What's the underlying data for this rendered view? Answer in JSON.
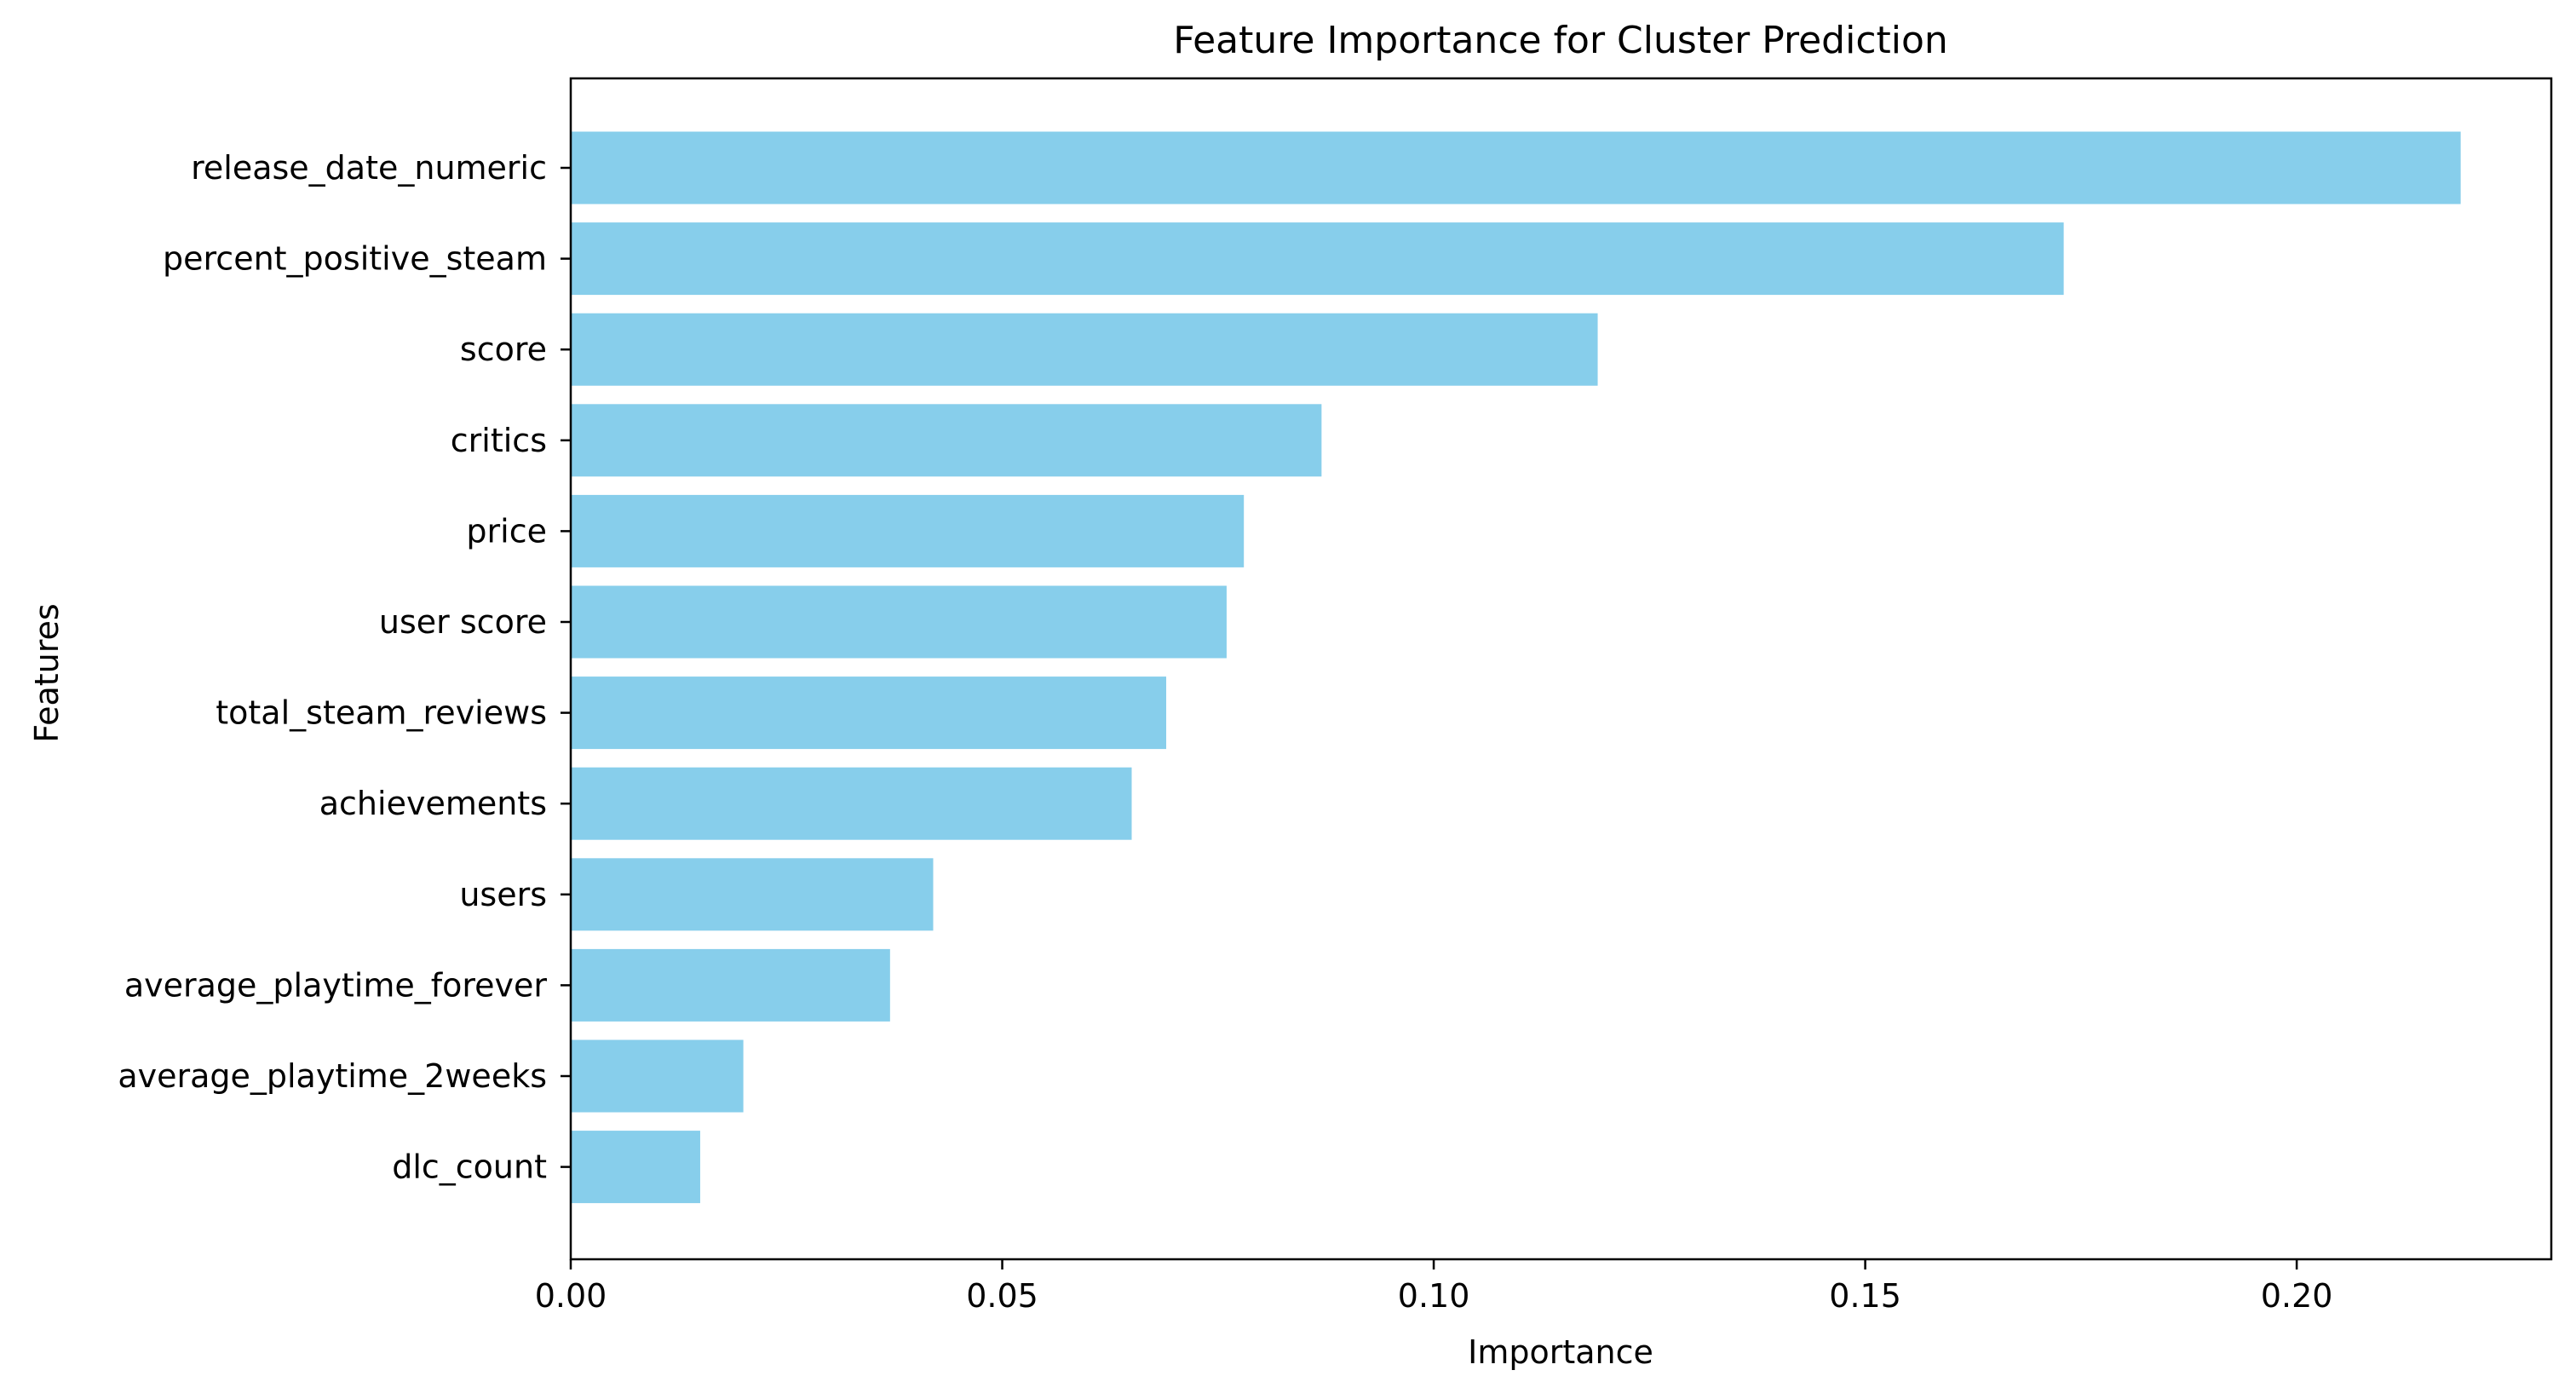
{
  "chart_data": {
    "type": "bar",
    "orientation": "horizontal",
    "title": "Feature Importance for Cluster Prediction",
    "xlabel": "Importance",
    "ylabel": "Features",
    "categories": [
      "release_date_numeric",
      "percent_positive_steam",
      "score",
      "critics",
      "price",
      "user score",
      "total_steam_reviews",
      "achievements",
      "users",
      "average_playtime_forever",
      "average_playtime_2weeks",
      "dlc_count"
    ],
    "values": [
      0.219,
      0.173,
      0.119,
      0.087,
      0.078,
      0.076,
      0.069,
      0.065,
      0.042,
      0.037,
      0.02,
      0.015
    ],
    "xlim": [
      0,
      0.2295
    ],
    "xticks": [
      0.0,
      0.05,
      0.1,
      0.15,
      0.2
    ],
    "xtick_labels": [
      "0.00",
      "0.05",
      "0.10",
      "0.15",
      "0.20"
    ],
    "bar_color": "#87CEEB",
    "grid": false,
    "legend": "none"
  }
}
